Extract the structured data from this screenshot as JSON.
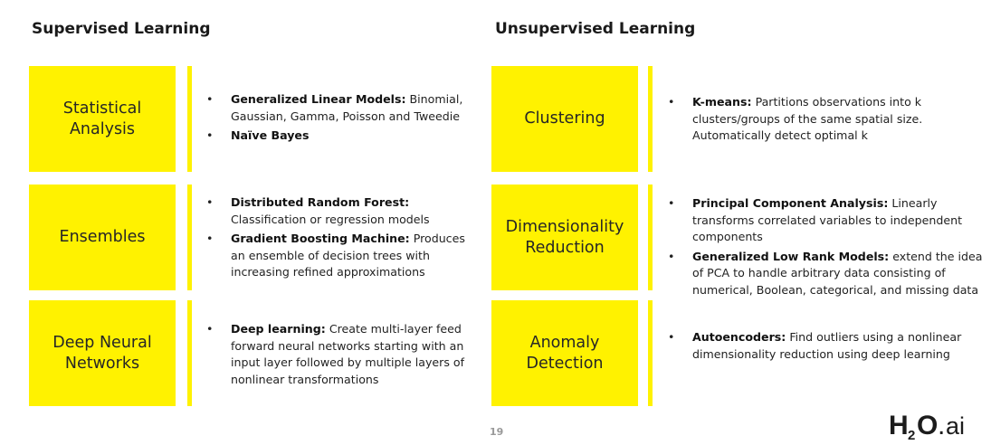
{
  "colors": {
    "box": "#FFF200",
    "bar": "#FFF200"
  },
  "headings": {
    "supervised": "Supervised Learning",
    "unsupervised": "Unsupervised Learning"
  },
  "supervised": [
    {
      "box_label": [
        "Statistical",
        "Analysis"
      ],
      "bullets": [
        {
          "bold": "Generalized Linear Models:",
          "text": " Binomial, Gaussian, Gamma, Poisson and Tweedie"
        },
        {
          "bold": "Naïve Bayes",
          "text": ""
        }
      ]
    },
    {
      "box_label": [
        "Ensembles"
      ],
      "bullets": [
        {
          "bold": "Distributed Random Forest:",
          "text": " Classification or regression models"
        },
        {
          "bold": "Gradient Boosting Machine:",
          "text": " Produces an ensemble of decision trees with increasing refined approximations"
        }
      ]
    },
    {
      "box_label": [
        "Deep Neural",
        "Networks"
      ],
      "bullets": [
        {
          "bold": "Deep learning:",
          "text": " Create multi-layer feed forward neural networks starting with an input layer followed by multiple layers of nonlinear transformations"
        }
      ]
    }
  ],
  "unsupervised": [
    {
      "box_label": [
        "Clustering"
      ],
      "bullets": [
        {
          "bold": "K-means:",
          "text": " Partitions observations into k clusters/groups of the same spatial size. Automatically detect optimal k"
        }
      ]
    },
    {
      "box_label": [
        "Dimensionality",
        "Reduction"
      ],
      "bullets": [
        {
          "bold": "Principal Component Analysis:",
          "text": " Linearly transforms correlated variables to independent components"
        },
        {
          "bold": "Generalized Low Rank Models:",
          "text": " extend the idea of PCA to handle arbitrary data consisting of numerical, Boolean, categorical, and missing data"
        }
      ]
    },
    {
      "box_label": [
        "Anomaly",
        "Detection"
      ],
      "bullets": [
        {
          "bold": "Autoencoders:",
          "text": " Find outliers using a nonlinear dimensionality reduction using deep learning"
        }
      ]
    }
  ],
  "footer": {
    "page_number": "19",
    "logo": {
      "h": "H",
      "sub": "2",
      "o": "O",
      "dot": ".",
      "ai": "ai"
    }
  }
}
